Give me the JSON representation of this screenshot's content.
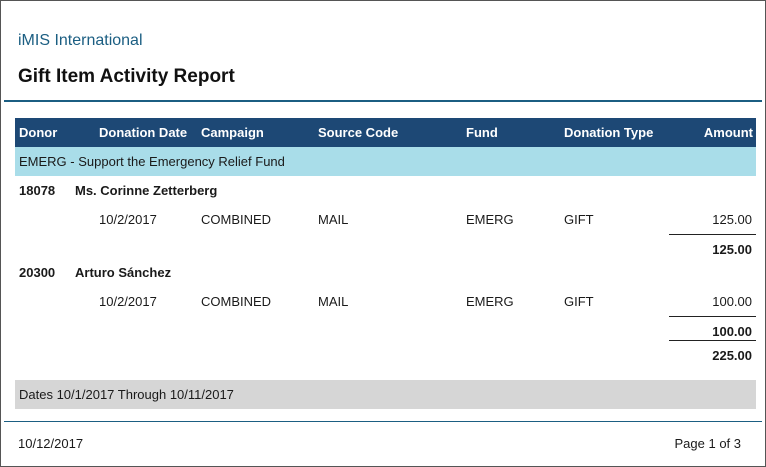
{
  "header": {
    "org_name": "iMIS International",
    "report_title": "Gift Item Activity Report"
  },
  "columns": {
    "donor": "Donor",
    "donation_date": "Donation Date",
    "campaign": "Campaign",
    "source_code": "Source Code",
    "fund": "Fund",
    "donation_type": "Donation Type",
    "amount": "Amount"
  },
  "group": {
    "label": "EMERG - Support the Emergency Relief Fund",
    "total": "225.00"
  },
  "donors": [
    {
      "id": "18078",
      "name": "Ms. Corinne Zetterberg",
      "gift": {
        "date": "10/2/2017",
        "campaign": "COMBINED",
        "source_code": "MAIL",
        "fund": "EMERG",
        "type": "GIFT",
        "amount": "125.00"
      },
      "subtotal": "125.00"
    },
    {
      "id": "20300",
      "name": "Arturo Sánchez",
      "gift": {
        "date": "10/2/2017",
        "campaign": "COMBINED",
        "source_code": "MAIL",
        "fund": "EMERG",
        "type": "GIFT",
        "amount": "100.00"
      },
      "subtotal": "100.00"
    }
  ],
  "date_range": "Dates 10/1/2017 Through 10/11/2017",
  "footer": {
    "printed_date": "10/12/2017",
    "page_label": "Page 1 of  3"
  }
}
